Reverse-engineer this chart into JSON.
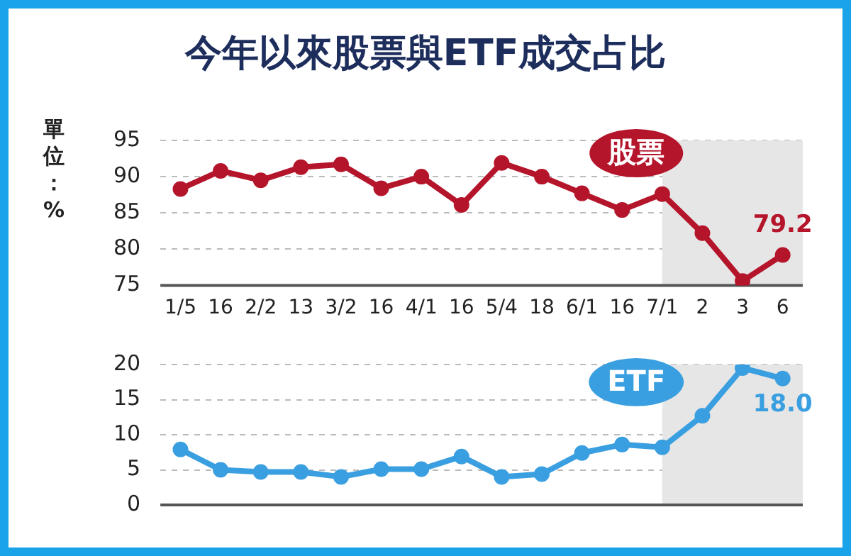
{
  "chart_data": [
    {
      "type": "line",
      "title": "今年以來股票與ETF成交占比",
      "ylabel": "單位：%",
      "categories": [
        "1/5",
        "16",
        "2/2",
        "13",
        "3/2",
        "16",
        "4/1",
        "16",
        "5/4",
        "18",
        "6/1",
        "16",
        "7/1",
        "2",
        "3",
        "6"
      ],
      "series": [
        {
          "name": "股票",
          "color": "#b5152b",
          "values": [
            88.3,
            90.8,
            89.5,
            91.3,
            91.7,
            88.4,
            90.0,
            86.1,
            91.9,
            90.0,
            87.7,
            85.4,
            87.6,
            82.2,
            75.6,
            79.2
          ],
          "value_labels": [
            null,
            null,
            null,
            null,
            null,
            null,
            null,
            null,
            null,
            null,
            null,
            null,
            null,
            null,
            null,
            "79.2"
          ]
        }
      ],
      "ylim": [
        75,
        95
      ],
      "yticks": [
        75,
        80,
        85,
        90,
        95
      ],
      "grid": "y",
      "legend": false,
      "marker": "circle",
      "line_style": "solid",
      "bands": [
        {
          "axis": "x",
          "from": "7/1",
          "to": "6",
          "color": "#e6e6e6"
        }
      ]
    },
    {
      "type": "line",
      "categories": [
        "1/5",
        "16",
        "2/2",
        "13",
        "3/2",
        "16",
        "4/1",
        "16",
        "5/4",
        "18",
        "6/1",
        "16",
        "7/1",
        "2",
        "3",
        "6"
      ],
      "series": [
        {
          "name": "ETF",
          "color": "#3a9fe0",
          "values": [
            7.9,
            5.0,
            4.7,
            4.7,
            4.0,
            5.1,
            5.1,
            6.9,
            4.0,
            4.4,
            7.4,
            8.6,
            8.2,
            12.7,
            19.5,
            18.0
          ],
          "value_labels": [
            null,
            null,
            null,
            null,
            null,
            null,
            null,
            null,
            null,
            null,
            null,
            null,
            null,
            null,
            null,
            "18.0"
          ]
        }
      ],
      "ylim": [
        0,
        20
      ],
      "yticks": [
        0,
        5,
        10,
        15,
        20
      ],
      "grid": "y",
      "legend": false,
      "marker": "circle",
      "line_style": "solid",
      "tick_labels": "y",
      "bands": [
        {
          "axis": "x",
          "from": "7/1",
          "to": "6",
          "color": "#e6e6e6"
        }
      ]
    }
  ]
}
